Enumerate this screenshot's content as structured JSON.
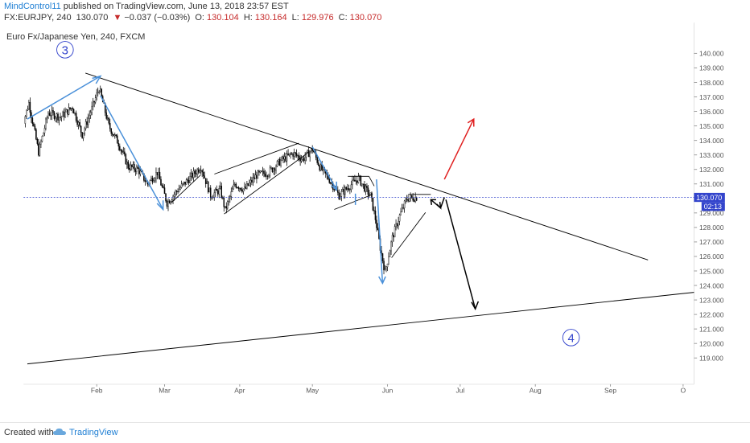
{
  "header": {
    "author": "MindControl11",
    "published": "published on TradingView.com, June 13, 2018 23:57 EST",
    "symbol": "FX:EURJPY, 240",
    "last": "130.070",
    "change_arrow": "▼",
    "change": "−0.037 (−0.03%)",
    "o_label": "O:",
    "o_val": "130.104",
    "h_label": "H:",
    "h_val": "130.164",
    "l_label": "L:",
    "l_val": "129.976",
    "c_label": "C:",
    "c_val": "130.070"
  },
  "chart_title": "Euro Fx/Japanese Yen, 240, FXCM",
  "wave_labels": {
    "start": "3",
    "end": "4"
  },
  "price_box": {
    "price": "130.070",
    "countdown": "02:13"
  },
  "footer": {
    "created_with": "Created with",
    "brand": "TradingView"
  },
  "colors": {
    "candle": "#000000",
    "arrow_blue": "#4a90d9",
    "arrow_red": "#e02020",
    "last_line": "#3344cc",
    "label_box": "#3344cc"
  },
  "chart_data": {
    "type": "candlestick",
    "title": "Euro Fx/Japanese Yen, 240, FXCM",
    "ylim": [
      118.5,
      140.5
    ],
    "y_ticks": [
      "140.000",
      "139.000",
      "138.000",
      "137.000",
      "136.000",
      "135.000",
      "134.000",
      "133.000",
      "132.000",
      "131.000",
      "130.000",
      "129.000",
      "128.000",
      "127.000",
      "126.000",
      "125.000",
      "124.000",
      "123.000",
      "122.000",
      "121.000",
      "120.000",
      "119.000"
    ],
    "x_ticks": [
      "Feb",
      "Mar",
      "Apr",
      "May",
      "Jun",
      "Jul",
      "Aug",
      "Sep",
      "O"
    ],
    "close_path": [
      [
        "Jan 01",
        134.8
      ],
      [
        "Jan 04",
        136.6
      ],
      [
        "Jan 08",
        133.2
      ],
      [
        "Jan 12",
        135.9
      ],
      [
        "Jan 17",
        135.6
      ],
      [
        "Jan 22",
        136.3
      ],
      [
        "Jan 26",
        134.4
      ],
      [
        "Jan 30",
        136.2
      ],
      [
        "Feb 02",
        137.6
      ],
      [
        "Feb 06",
        135.0
      ],
      [
        "Feb 10",
        133.8
      ],
      [
        "Feb 14",
        132.2
      ],
      [
        "Feb 18",
        132.0
      ],
      [
        "Feb 22",
        131.0
      ],
      [
        "Feb 26",
        131.8
      ],
      [
        "Mar 02",
        129.7
      ],
      [
        "Mar 06",
        130.5
      ],
      [
        "Mar 12",
        131.5
      ],
      [
        "Mar 16",
        132.2
      ],
      [
        "Mar 20",
        130.2
      ],
      [
        "Mar 24",
        130.6
      ],
      [
        "Mar 26",
        129.2
      ],
      [
        "Mar 30",
        131.0
      ],
      [
        "Apr 03",
        130.6
      ],
      [
        "Apr 08",
        131.6
      ],
      [
        "Apr 13",
        131.8
      ],
      [
        "Apr 18",
        132.6
      ],
      [
        "Apr 23",
        133.1
      ],
      [
        "Apr 27",
        132.7
      ],
      [
        "May 01",
        133.4
      ],
      [
        "May 04",
        132.2
      ],
      [
        "May 08",
        131.3
      ],
      [
        "May 12",
        130.2
      ],
      [
        "May 16",
        130.8
      ],
      [
        "May 20",
        131.4
      ],
      [
        "May 23",
        130.6
      ],
      [
        "May 25",
        130.2
      ],
      [
        "May 27",
        128.6
      ],
      [
        "May 29",
        126.6
      ],
      [
        "May 31",
        124.9
      ],
      [
        "Jun 03",
        127.3
      ],
      [
        "Jun 06",
        128.8
      ],
      [
        "Jun 09",
        130.0
      ],
      [
        "Jun 13",
        130.07
      ]
    ],
    "last_price": 130.07
  }
}
